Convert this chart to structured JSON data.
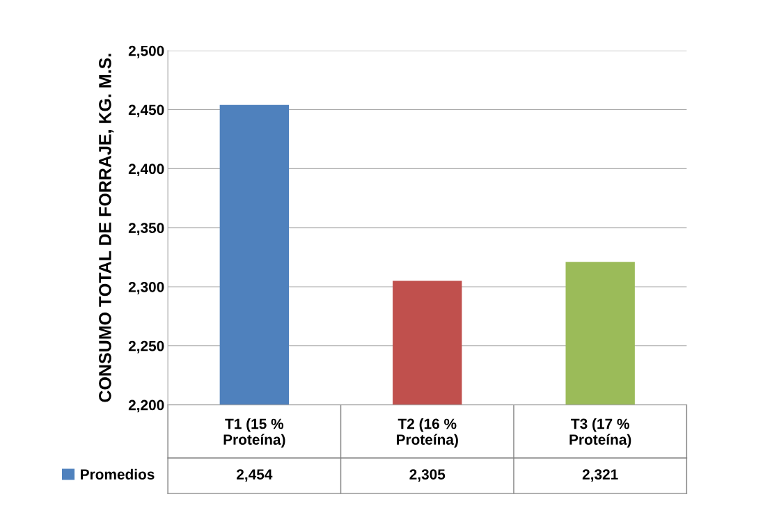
{
  "chart_data": {
    "type": "bar",
    "ylabel": "CONSUMO TOTAL DE FORRAJE, KG. M.S.",
    "categories": [
      "T1 (15 %\nProteína)",
      "T2 (16 %\nProteína)",
      "T3 (17 %\nProteína)"
    ],
    "series": [
      {
        "name": "Promedios",
        "color": "#4f81bd",
        "colors": [
          "#4f81bd",
          "#c0504d",
          "#9bbb59"
        ],
        "values": [
          2454,
          2305,
          2321
        ],
        "value_labels": [
          "2,454",
          "2,305",
          "2,321"
        ]
      }
    ],
    "ylim": [
      2200,
      2500
    ],
    "yticks": [
      {
        "value": 2200,
        "label": "2,200"
      },
      {
        "value": 2250,
        "label": "2,250"
      },
      {
        "value": 2300,
        "label": "2,300"
      },
      {
        "value": 2350,
        "label": "2,350"
      },
      {
        "value": 2400,
        "label": "2,400"
      },
      {
        "value": 2450,
        "label": "2,450"
      },
      {
        "value": 2500,
        "label": "2,500"
      }
    ],
    "grid": "y",
    "legend": "bottom left"
  }
}
